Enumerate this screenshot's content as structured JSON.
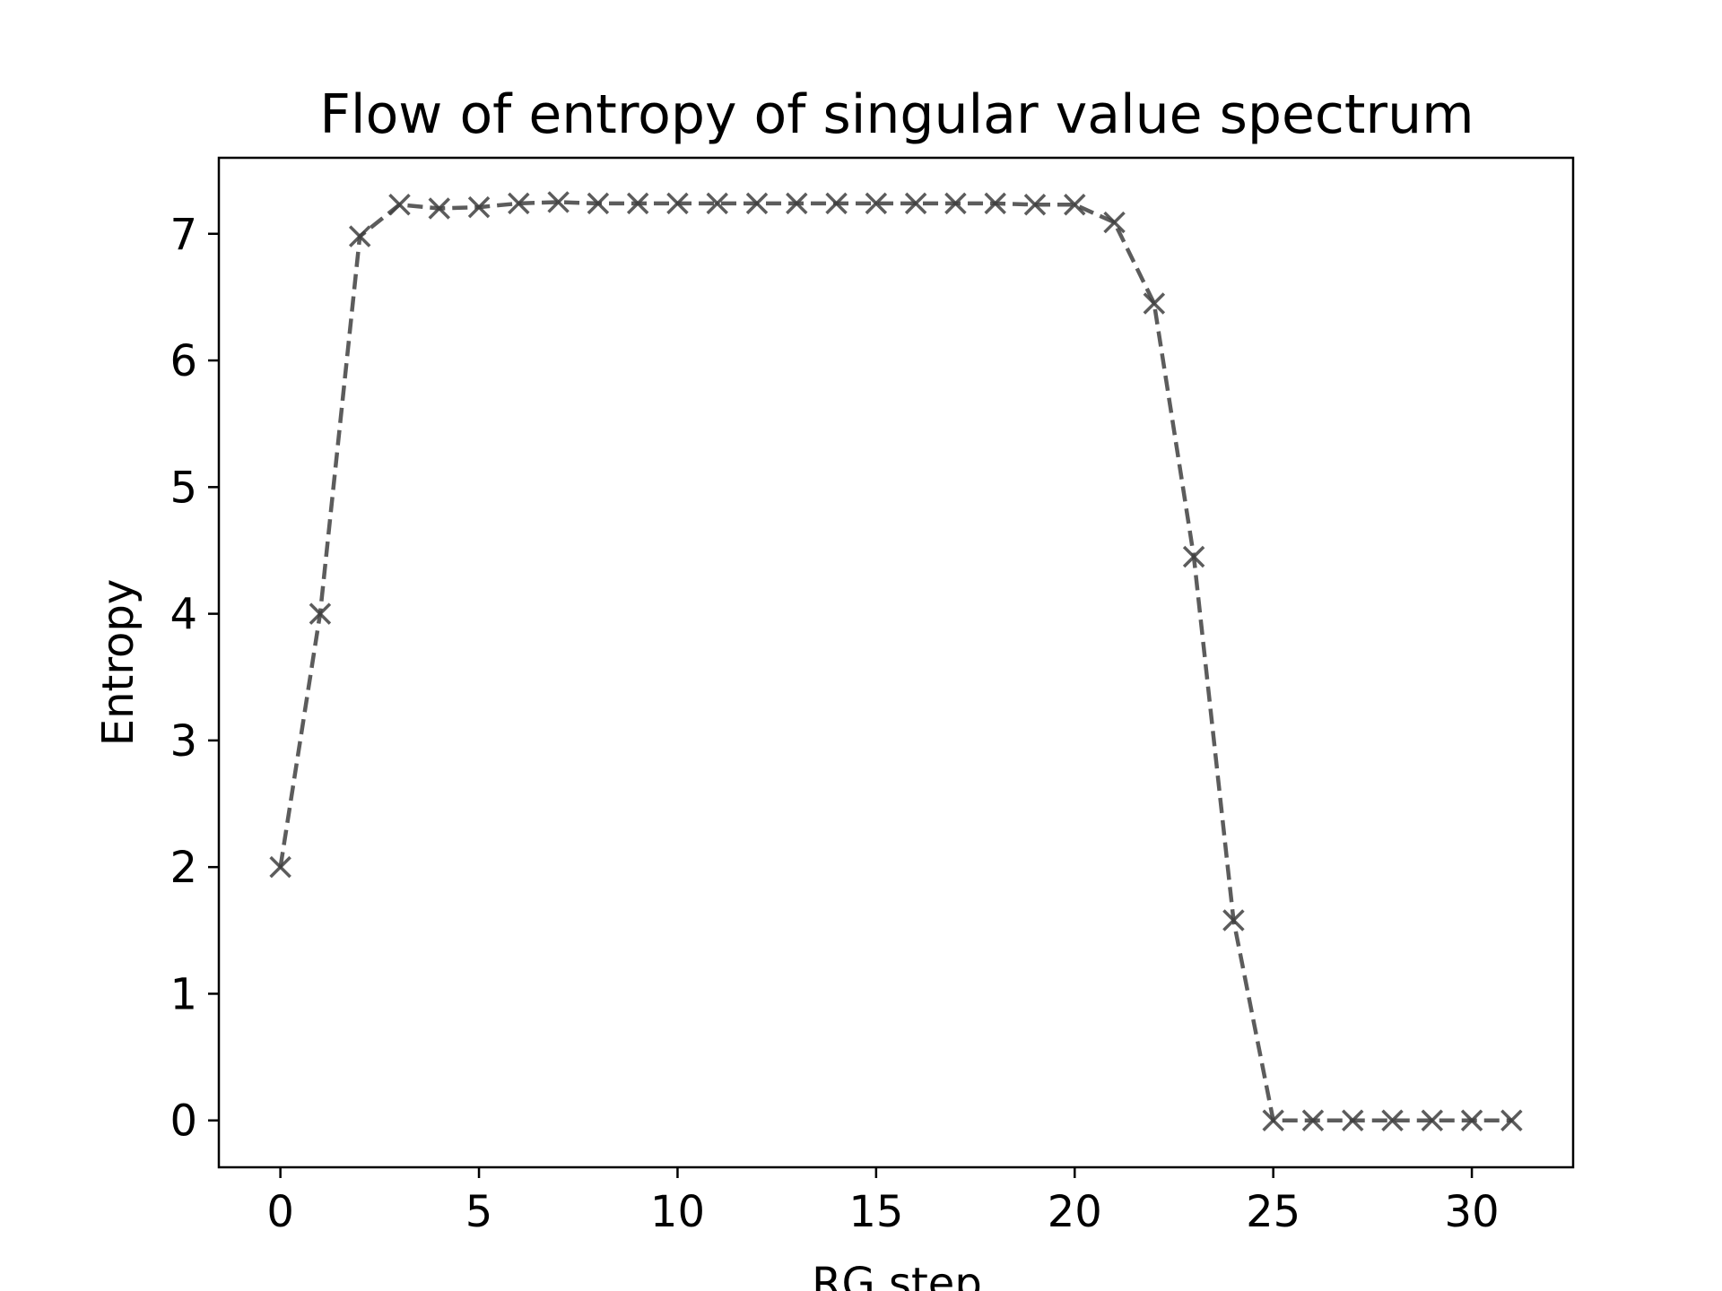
{
  "chart_data": {
    "type": "line",
    "title": "Flow of entropy of singular value spectrum",
    "xlabel": "RG step",
    "ylabel": "Entropy",
    "xlim": [
      -1.55,
      32.55
    ],
    "ylim": [
      -0.37,
      7.6
    ],
    "xticks": [
      0,
      5,
      10,
      15,
      20,
      25,
      30
    ],
    "yticks": [
      0,
      1,
      2,
      3,
      4,
      5,
      6,
      7
    ],
    "grid": false,
    "series": [
      {
        "name": "Entropy",
        "color": "#404040",
        "linestyle": "dashed",
        "marker": "x",
        "x": [
          0,
          1,
          2,
          3,
          4,
          5,
          6,
          7,
          8,
          9,
          10,
          11,
          12,
          13,
          14,
          15,
          16,
          17,
          18,
          19,
          20,
          21,
          22,
          23,
          24,
          25,
          26,
          27,
          28,
          29,
          30,
          31
        ],
        "y": [
          2.0,
          4.0,
          6.98,
          7.23,
          7.2,
          7.21,
          7.24,
          7.25,
          7.24,
          7.24,
          7.24,
          7.24,
          7.24,
          7.24,
          7.24,
          7.24,
          7.24,
          7.24,
          7.24,
          7.23,
          7.23,
          7.09,
          6.45,
          4.45,
          1.58,
          0.0,
          0.0,
          0.0,
          0.0,
          0.0,
          0.0,
          0.0
        ]
      }
    ]
  }
}
